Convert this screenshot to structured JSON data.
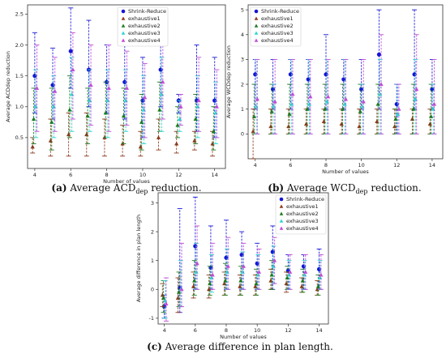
{
  "series_colors": [
    "#1515d6",
    "#8b3a1a",
    "#1f7a1f",
    "#2ad4d4",
    "#c04cd6"
  ],
  "chart_data": [
    {
      "type": "scatter",
      "panel": "a",
      "caption": {
        "letter": "(a)",
        "text": "Average ACD",
        "sub": "dep",
        "after": " reduction."
      },
      "xlabel": "Number of values",
      "ylabel": "Average ACDdep reduction",
      "xlim": [
        3.6,
        14.6
      ],
      "ylim": [
        0.0,
        2.65
      ],
      "xticks": [
        "4",
        "6",
        "8",
        "10",
        "12",
        "14"
      ],
      "xtick_values": [
        4,
        6,
        8,
        10,
        12,
        14
      ],
      "yticks": [
        "0.5",
        "1.0",
        "1.5",
        "2.0",
        "2.5"
      ],
      "ytick_values": [
        0.5,
        1.0,
        1.5,
        2.0,
        2.5
      ],
      "legend": {
        "position": "top-center",
        "entries": [
          "Shrink-Reduce",
          "exhaustive1",
          "exhaustive2",
          "exhaustive3",
          "exhaustive4"
        ]
      },
      "x": [
        4,
        5,
        6,
        7,
        8,
        9,
        10,
        11,
        12,
        13,
        14
      ],
      "series": [
        {
          "name": "Shrink-Reduce",
          "values": [
            1.5,
            1.35,
            1.9,
            1.6,
            1.4,
            1.4,
            1.1,
            1.6,
            1.1,
            1.1,
            1.1
          ],
          "lower": [
            0.9,
            0.8,
            1.3,
            1.0,
            0.9,
            0.8,
            0.5,
            1.0,
            0.9,
            0.6,
            0.5
          ],
          "upper": [
            2.2,
            1.95,
            2.6,
            2.4,
            2.0,
            2.0,
            1.8,
            2.4,
            1.2,
            2.0,
            1.8
          ]
        },
        {
          "name": "exhaustive1",
          "values": [
            0.35,
            0.45,
            0.55,
            0.55,
            0.5,
            0.4,
            0.35,
            0.5,
            0.4,
            0.45,
            0.4
          ],
          "lower": [
            0.25,
            0.2,
            0.2,
            0.2,
            0.2,
            0.2,
            0.2,
            0.3,
            0.25,
            0.3,
            0.2
          ],
          "upper": [
            0.5,
            0.8,
            0.9,
            0.9,
            0.8,
            0.7,
            0.6,
            0.8,
            0.6,
            0.6,
            0.6
          ]
        },
        {
          "name": "exhaustive2",
          "values": [
            0.8,
            0.75,
            0.95,
            0.85,
            0.9,
            0.85,
            0.75,
            0.95,
            0.7,
            0.8,
            0.6
          ],
          "lower": [
            0.4,
            0.3,
            0.5,
            0.4,
            0.5,
            0.4,
            0.3,
            0.6,
            0.5,
            0.4,
            0.3
          ],
          "upper": [
            1.3,
            1.3,
            1.5,
            1.3,
            1.4,
            1.3,
            1.2,
            1.4,
            1.0,
            1.2,
            1.0
          ]
        },
        {
          "name": "exhaustive3",
          "values": [
            1.0,
            1.0,
            1.2,
            1.1,
            1.1,
            1.1,
            0.95,
            1.2,
            0.8,
            1.0,
            0.9
          ],
          "lower": [
            0.5,
            0.5,
            0.6,
            0.6,
            0.5,
            0.6,
            0.4,
            0.6,
            0.6,
            0.5,
            0.4
          ],
          "upper": [
            1.6,
            1.5,
            1.8,
            1.6,
            1.6,
            1.6,
            1.5,
            1.8,
            1.1,
            1.5,
            1.4
          ]
        },
        {
          "name": "exhaustive4",
          "values": [
            1.3,
            1.25,
            1.6,
            1.35,
            1.3,
            1.3,
            1.15,
            1.4,
            1.0,
            1.1,
            1.0
          ],
          "lower": [
            0.6,
            0.6,
            0.8,
            0.7,
            0.6,
            0.7,
            0.5,
            0.8,
            0.7,
            0.6,
            0.5
          ],
          "upper": [
            2.0,
            1.8,
            2.2,
            2.0,
            2.0,
            1.9,
            1.7,
            2.2,
            1.2,
            1.8,
            1.6
          ]
        }
      ]
    },
    {
      "type": "scatter",
      "panel": "b",
      "caption": {
        "letter": "(b)",
        "text": "Average WCD",
        "sub": "dep",
        "after": " reduction."
      },
      "xlabel": "Number of values",
      "ylabel": "Average WCDdep reduction",
      "xlim": [
        3.6,
        14.6
      ],
      "ylim": [
        -1.0,
        5.2
      ],
      "xticks": [
        "4",
        "6",
        "8",
        "10",
        "12",
        "14"
      ],
      "xtick_values": [
        4,
        6,
        8,
        10,
        12,
        14
      ],
      "yticks": [
        "0",
        "1",
        "2",
        "3",
        "4",
        "5"
      ],
      "ytick_values": [
        0,
        1,
        2,
        3,
        4,
        5
      ],
      "legend": {
        "position": "top-left",
        "entries": [
          "Shrink-Reduce",
          "exhaustive1",
          "exhaustive2",
          "exhaustive3",
          "exhaustive4"
        ]
      },
      "x": [
        4,
        5,
        6,
        7,
        8,
        9,
        10,
        11,
        12,
        13,
        14
      ],
      "series": [
        {
          "name": "Shrink-Reduce",
          "values": [
            2.4,
            1.8,
            2.4,
            2.2,
            2.4,
            2.2,
            1.8,
            3.2,
            1.2,
            2.4,
            1.8
          ],
          "lower": [
            1.0,
            1.0,
            1.0,
            1.0,
            1.0,
            1.0,
            1.0,
            1.0,
            0.0,
            1.0,
            1.0
          ],
          "upper": [
            3.0,
            3.0,
            3.0,
            3.0,
            4.0,
            3.0,
            3.0,
            5.0,
            2.0,
            5.0,
            3.0
          ]
        },
        {
          "name": "exhaustive1",
          "values": [
            0.1,
            0.3,
            0.3,
            0.4,
            0.5,
            0.4,
            0.3,
            0.5,
            0.3,
            0.6,
            0.4
          ],
          "lower": [
            -1.0,
            0.0,
            0.0,
            0.0,
            0.0,
            0.0,
            0.0,
            0.0,
            0.0,
            0.0,
            0.0
          ],
          "upper": [
            1.0,
            1.0,
            1.0,
            1.0,
            1.0,
            1.0,
            1.0,
            1.0,
            1.0,
            1.0,
            1.0
          ]
        },
        {
          "name": "exhaustive2",
          "values": [
            0.7,
            0.9,
            0.8,
            1.0,
            1.0,
            1.0,
            0.9,
            1.2,
            0.6,
            1.0,
            0.7
          ],
          "lower": [
            0.0,
            0.0,
            0.0,
            0.0,
            0.0,
            0.0,
            0.0,
            0.0,
            0.0,
            0.0,
            0.0
          ],
          "upper": [
            2.0,
            2.0,
            2.0,
            2.0,
            2.0,
            2.0,
            2.0,
            2.0,
            1.0,
            2.0,
            2.0
          ]
        },
        {
          "name": "exhaustive3",
          "values": [
            1.1,
            1.1,
            1.2,
            1.2,
            1.3,
            1.2,
            1.1,
            1.6,
            0.8,
            1.4,
            1.0
          ],
          "lower": [
            0.0,
            0.0,
            0.0,
            0.0,
            0.0,
            0.0,
            0.0,
            0.0,
            0.0,
            0.0,
            0.0
          ],
          "upper": [
            3.0,
            2.0,
            3.0,
            3.0,
            3.0,
            3.0,
            2.0,
            3.0,
            2.0,
            3.0,
            2.0
          ]
        },
        {
          "name": "exhaustive4",
          "values": [
            1.4,
            1.3,
            1.6,
            1.5,
            1.5,
            1.4,
            1.3,
            2.0,
            1.0,
            1.8,
            1.2
          ],
          "lower": [
            0.0,
            0.0,
            0.0,
            0.0,
            0.0,
            0.0,
            0.0,
            0.0,
            0.0,
            0.0,
            0.0
          ],
          "upper": [
            3.0,
            3.0,
            3.0,
            3.0,
            3.0,
            3.0,
            3.0,
            4.0,
            2.0,
            4.0,
            3.0
          ]
        }
      ]
    },
    {
      "type": "scatter",
      "panel": "c",
      "caption": {
        "letter": "(c)",
        "text": "Average difference in plan length.",
        "sub": "",
        "after": ""
      },
      "xlabel": "Number of values",
      "ylabel": "Average difference in plan length",
      "xlim": [
        3.6,
        14.6
      ],
      "ylim": [
        -1.2,
        3.35
      ],
      "xticks": [
        "4",
        "6",
        "8",
        "10",
        "12",
        "14"
      ],
      "xtick_values": [
        4,
        6,
        8,
        10,
        12,
        14
      ],
      "yticks": [
        "-1",
        "0",
        "1",
        "2",
        "3"
      ],
      "ytick_values": [
        -1,
        0,
        1,
        2,
        3
      ],
      "legend": {
        "position": "top-right",
        "entries": [
          "Shrink-Reduce",
          "exhaustive1",
          "exhaustive2",
          "exhaustive3",
          "exhaustive4"
        ]
      },
      "x": [
        4,
        5,
        6,
        7,
        8,
        9,
        10,
        11,
        12,
        13,
        14
      ],
      "series": [
        {
          "name": "Shrink-Reduce",
          "values": [
            -0.6,
            0.05,
            1.5,
            0.75,
            1.1,
            1.2,
            0.9,
            1.3,
            0.65,
            0.8,
            0.7
          ],
          "lower": [
            -1.0,
            -0.8,
            0.0,
            0.0,
            0.0,
            0.0,
            0.0,
            0.0,
            0.0,
            0.0,
            0.0
          ],
          "upper": [
            -0.2,
            2.8,
            3.2,
            2.2,
            2.4,
            2.0,
            1.6,
            2.2,
            1.2,
            1.2,
            1.4
          ]
        },
        {
          "name": "exhaustive1",
          "values": [
            -0.2,
            -0.3,
            0.1,
            0.0,
            0.2,
            0.1,
            0.1,
            0.3,
            0.2,
            0.1,
            0.0
          ],
          "lower": [
            -0.6,
            -0.8,
            -0.3,
            -0.3,
            -0.2,
            -0.2,
            -0.2,
            0.0,
            -0.1,
            -0.1,
            -0.2
          ],
          "upper": [
            0.2,
            0.4,
            0.6,
            0.5,
            0.6,
            0.5,
            0.5,
            0.7,
            0.6,
            0.4,
            0.3
          ]
        },
        {
          "name": "exhaustive2",
          "values": [
            -0.3,
            -0.1,
            0.3,
            0.2,
            0.3,
            0.3,
            0.2,
            0.5,
            0.4,
            0.3,
            0.1
          ],
          "lower": [
            -0.8,
            -0.6,
            -0.2,
            -0.2,
            -0.2,
            -0.2,
            -0.2,
            0.0,
            0.0,
            -0.1,
            -0.2
          ],
          "upper": [
            0.3,
            0.6,
            1.0,
            0.8,
            0.9,
            0.8,
            0.7,
            1.0,
            0.8,
            0.7,
            0.5
          ]
        },
        {
          "name": "exhaustive3",
          "values": [
            -0.4,
            0.0,
            0.6,
            0.4,
            0.6,
            0.6,
            0.5,
            0.8,
            0.5,
            0.5,
            0.4
          ],
          "lower": [
            -1.0,
            -0.6,
            0.0,
            -0.1,
            0.0,
            0.0,
            0.0,
            0.2,
            0.0,
            0.0,
            0.0
          ],
          "upper": [
            0.3,
            1.0,
            1.6,
            1.2,
            1.4,
            1.3,
            1.2,
            1.5,
            1.0,
            1.0,
            1.0
          ]
        },
        {
          "name": "exhaustive4",
          "values": [
            -0.5,
            0.0,
            0.9,
            0.5,
            0.8,
            0.8,
            0.6,
            1.0,
            0.6,
            0.6,
            0.5
          ],
          "lower": [
            -1.1,
            -0.6,
            0.0,
            0.0,
            0.0,
            0.0,
            0.0,
            0.2,
            0.0,
            0.0,
            0.0
          ],
          "upper": [
            0.4,
            1.6,
            2.2,
            1.6,
            1.8,
            1.6,
            1.4,
            1.8,
            1.2,
            1.2,
            1.2
          ]
        }
      ]
    }
  ]
}
